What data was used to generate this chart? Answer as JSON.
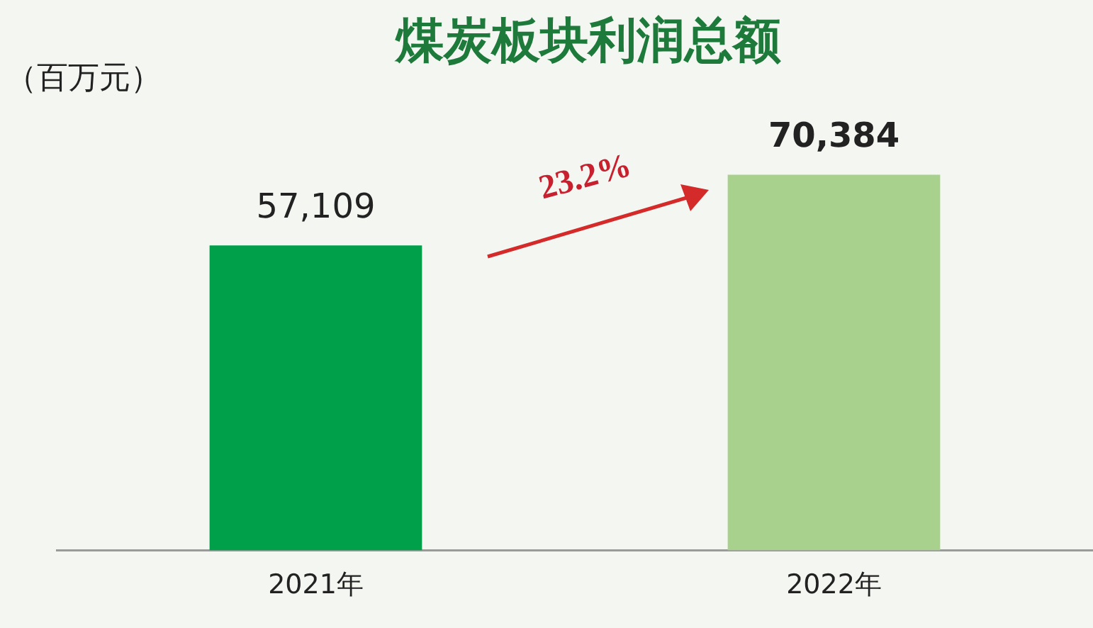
{
  "chart_data": {
    "type": "bar",
    "title": "煤炭板块利润总额",
    "ylabel": "（百万元）",
    "categories": [
      "2021年",
      "2022年"
    ],
    "values": [
      57109,
      70384
    ],
    "colors": [
      "#00a04b",
      "#a9d18e"
    ],
    "value_labels": [
      "57,109",
      "70,384"
    ],
    "annotations": [
      "23.2%"
    ],
    "grid": false,
    "legend": false,
    "tick_labels": "x"
  }
}
